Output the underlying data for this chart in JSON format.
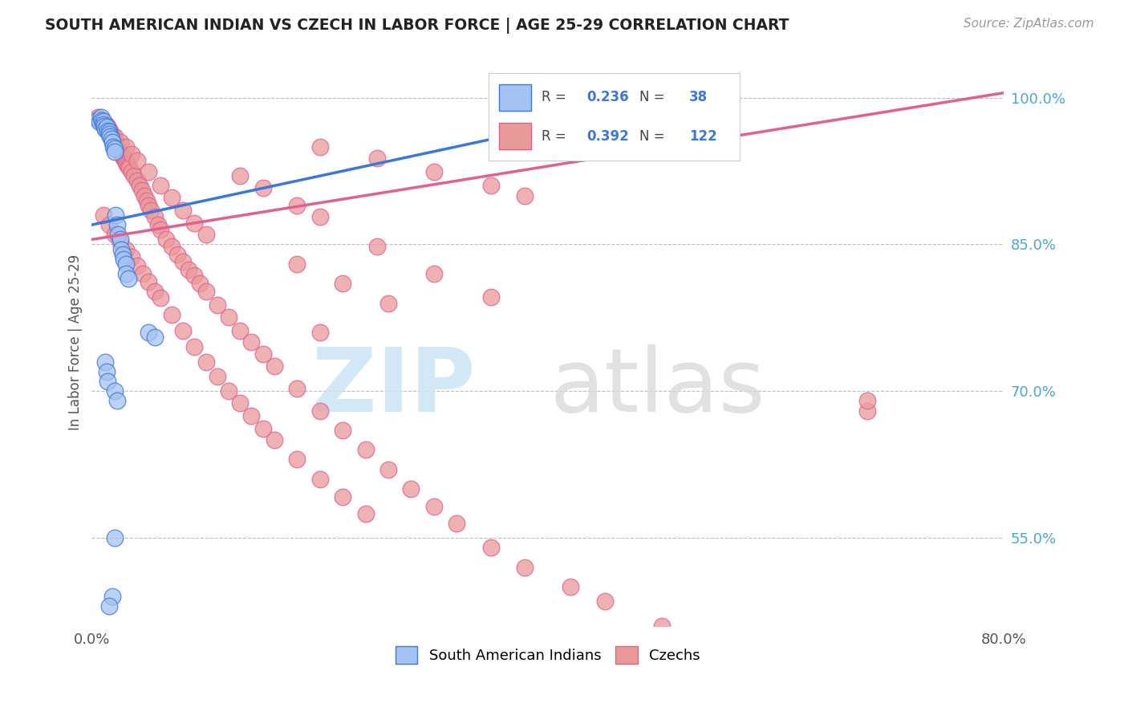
{
  "title": "SOUTH AMERICAN INDIAN VS CZECH IN LABOR FORCE | AGE 25-29 CORRELATION CHART",
  "source": "Source: ZipAtlas.com",
  "y_label": "In Labor Force | Age 25-29",
  "xlim": [
    0.0,
    0.8
  ],
  "ylim": [
    0.46,
    1.04
  ],
  "yticks": [
    0.55,
    0.7,
    0.85,
    1.0
  ],
  "ytick_labels": [
    "55.0%",
    "70.0%",
    "85.0%",
    "100.0%"
  ],
  "xtick_labels": [
    "0.0%",
    "80.0%"
  ],
  "blue_color": "#a4c2f4",
  "pink_color": "#ea9999",
  "blue_line_color": "#3c78d8",
  "pink_line_color": "#e06090",
  "legend_label1": "South American Indians",
  "legend_label2": "Czechs",
  "blue_line_x0": 0.0,
  "blue_line_y0": 0.87,
  "blue_line_x1": 0.42,
  "blue_line_y1": 0.975,
  "pink_line_x0": 0.0,
  "pink_line_x1": 0.8,
  "pink_line_y0": 0.855,
  "pink_line_y1": 1.005,
  "blue_x": [
    0.005,
    0.007,
    0.008,
    0.009,
    0.01,
    0.01,
    0.011,
    0.012,
    0.013,
    0.014,
    0.015,
    0.015,
    0.016,
    0.017,
    0.018,
    0.019,
    0.02,
    0.02,
    0.021,
    0.022,
    0.023,
    0.025,
    0.026,
    0.027,
    0.028,
    0.03,
    0.03,
    0.032,
    0.05,
    0.055,
    0.012,
    0.013,
    0.014,
    0.02,
    0.022,
    0.02,
    0.018,
    0.015
  ],
  "blue_y": [
    0.978,
    0.975,
    0.98,
    0.977,
    0.976,
    0.973,
    0.971,
    0.968,
    0.97,
    0.966,
    0.965,
    0.963,
    0.96,
    0.958,
    0.955,
    0.95,
    0.948,
    0.945,
    0.88,
    0.87,
    0.86,
    0.855,
    0.845,
    0.84,
    0.835,
    0.83,
    0.82,
    0.815,
    0.76,
    0.755,
    0.73,
    0.72,
    0.71,
    0.7,
    0.69,
    0.55,
    0.49,
    0.48
  ],
  "pink_x": [
    0.005,
    0.007,
    0.008,
    0.009,
    0.01,
    0.011,
    0.012,
    0.013,
    0.014,
    0.015,
    0.016,
    0.017,
    0.018,
    0.019,
    0.02,
    0.021,
    0.022,
    0.023,
    0.024,
    0.025,
    0.026,
    0.027,
    0.028,
    0.029,
    0.03,
    0.031,
    0.032,
    0.033,
    0.035,
    0.037,
    0.04,
    0.042,
    0.044,
    0.046,
    0.048,
    0.05,
    0.052,
    0.055,
    0.058,
    0.06,
    0.065,
    0.07,
    0.075,
    0.08,
    0.085,
    0.09,
    0.095,
    0.1,
    0.11,
    0.12,
    0.13,
    0.14,
    0.15,
    0.16,
    0.18,
    0.2,
    0.22,
    0.24,
    0.26,
    0.28,
    0.3,
    0.32,
    0.35,
    0.38,
    0.42,
    0.45,
    0.5,
    0.55,
    0.68,
    0.01,
    0.015,
    0.02,
    0.025,
    0.03,
    0.035,
    0.04,
    0.045,
    0.05,
    0.055,
    0.06,
    0.07,
    0.08,
    0.09,
    0.1,
    0.11,
    0.12,
    0.13,
    0.14,
    0.15,
    0.16,
    0.18,
    0.2,
    0.22,
    0.24,
    0.13,
    0.15,
    0.18,
    0.2,
    0.25,
    0.3,
    0.35,
    0.2,
    0.25,
    0.3,
    0.35,
    0.38,
    0.02,
    0.025,
    0.03,
    0.035,
    0.04,
    0.05,
    0.06,
    0.07,
    0.08,
    0.09,
    0.1,
    0.18,
    0.22,
    0.26,
    0.68,
    0.2
  ],
  "pink_y": [
    0.98,
    0.978,
    0.977,
    0.976,
    0.975,
    0.974,
    0.973,
    0.972,
    0.97,
    0.968,
    0.965,
    0.963,
    0.96,
    0.958,
    0.955,
    0.952,
    0.95,
    0.948,
    0.946,
    0.944,
    0.942,
    0.94,
    0.938,
    0.936,
    0.934,
    0.932,
    0.93,
    0.928,
    0.924,
    0.92,
    0.915,
    0.91,
    0.905,
    0.9,
    0.895,
    0.89,
    0.885,
    0.878,
    0.87,
    0.865,
    0.855,
    0.848,
    0.84,
    0.832,
    0.824,
    0.818,
    0.81,
    0.802,
    0.788,
    0.776,
    0.762,
    0.75,
    0.738,
    0.726,
    0.703,
    0.68,
    0.66,
    0.64,
    0.62,
    0.6,
    0.582,
    0.565,
    0.54,
    0.52,
    0.5,
    0.485,
    0.46,
    0.44,
    0.68,
    0.88,
    0.87,
    0.86,
    0.852,
    0.845,
    0.837,
    0.828,
    0.82,
    0.812,
    0.802,
    0.795,
    0.778,
    0.762,
    0.745,
    0.73,
    0.715,
    0.7,
    0.688,
    0.675,
    0.662,
    0.65,
    0.63,
    0.61,
    0.592,
    0.575,
    0.92,
    0.908,
    0.89,
    0.878,
    0.848,
    0.82,
    0.796,
    0.95,
    0.938,
    0.924,
    0.91,
    0.9,
    0.96,
    0.955,
    0.95,
    0.942,
    0.936,
    0.924,
    0.91,
    0.898,
    0.885,
    0.872,
    0.86,
    0.83,
    0.81,
    0.79,
    0.69,
    0.76
  ]
}
